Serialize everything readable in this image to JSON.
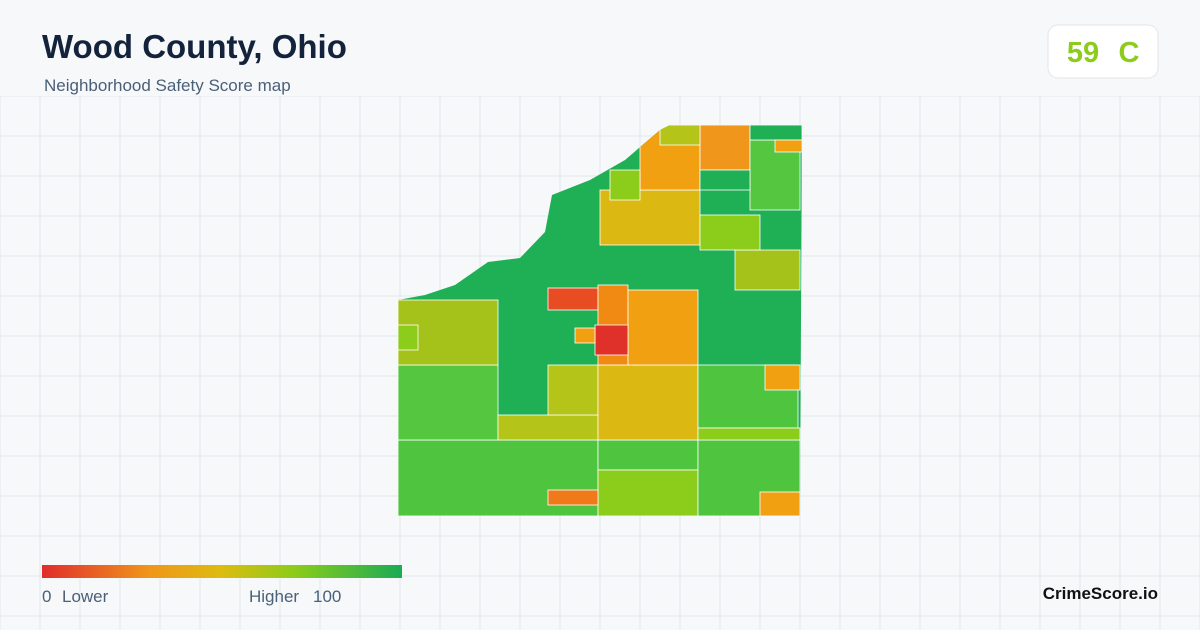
{
  "header": {
    "title": "Wood County, Ohio",
    "subtitle": "Neighborhood Safety Score map"
  },
  "score": {
    "value": 59,
    "grade": "C"
  },
  "legend": {
    "min": 0,
    "min_label": "Lower",
    "max_label": "Higher",
    "max": 100
  },
  "footer": {
    "brand": "CrimeScore.io"
  }
}
